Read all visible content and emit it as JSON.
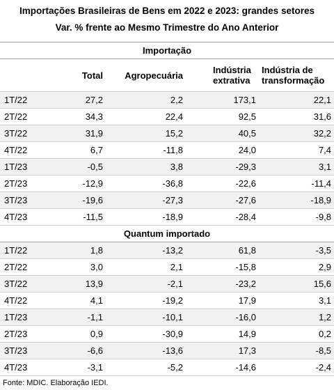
{
  "title": "Importações Brasileiras de Bens em 2022 e 2023: grandes setores",
  "subtitle": "Var. %  frente ao Mesmo Trimestre do Ano Anterior",
  "columns": [
    "Total",
    "Agropecuária",
    "Indústria extrativa",
    "Indústria de transformação"
  ],
  "sections": [
    {
      "title": "Importação",
      "rows": [
        [
          "1T/22",
          "27,2",
          "2,2",
          "173,1",
          "22,1"
        ],
        [
          "2T/22",
          "34,3",
          "22,4",
          "92,5",
          "31,6"
        ],
        [
          "3T/22",
          "31,9",
          "15,2",
          "40,5",
          "32,2"
        ],
        [
          "4T/22",
          "6,7",
          "-11,8",
          "24,0",
          "7,4"
        ],
        [
          "1T/23",
          "-0,5",
          "3,8",
          "-29,3",
          "3,1"
        ],
        [
          "2T/23",
          "-12,9",
          "-36,8",
          "-22,6",
          "-11,4"
        ],
        [
          "3T/23",
          "-19,6",
          "-27,3",
          "-27,6",
          "-18,9"
        ],
        [
          "4T/23",
          "-11,5",
          "-18,9",
          "-28,4",
          "-9,8"
        ]
      ]
    },
    {
      "title": "Quantum importado",
      "rows": [
        [
          "1T/22",
          "1,8",
          "-13,2",
          "61,8",
          "-3,5"
        ],
        [
          "2T/22",
          "3,0",
          "2,1",
          "-15,8",
          "2,9"
        ],
        [
          "3T/22",
          "13,9",
          "-2,1",
          "-23,2",
          "15,6"
        ],
        [
          "4T/22",
          "4,1",
          "-19,2",
          "17,9",
          "3,1"
        ],
        [
          "1T/23",
          "-1,1",
          "-10,1",
          "-16,0",
          "1,2"
        ],
        [
          "2T/23",
          "0,9",
          "-30,9",
          "14,9",
          "0,2"
        ],
        [
          "3T/23",
          "-6,6",
          "-13,6",
          "17,3",
          "-8,5"
        ],
        [
          "4T/23",
          "-3,1",
          "-5,2",
          "-14,6",
          "-2,4"
        ]
      ]
    }
  ],
  "source": "Fonte: MDIC. Elaboração IEDI."
}
